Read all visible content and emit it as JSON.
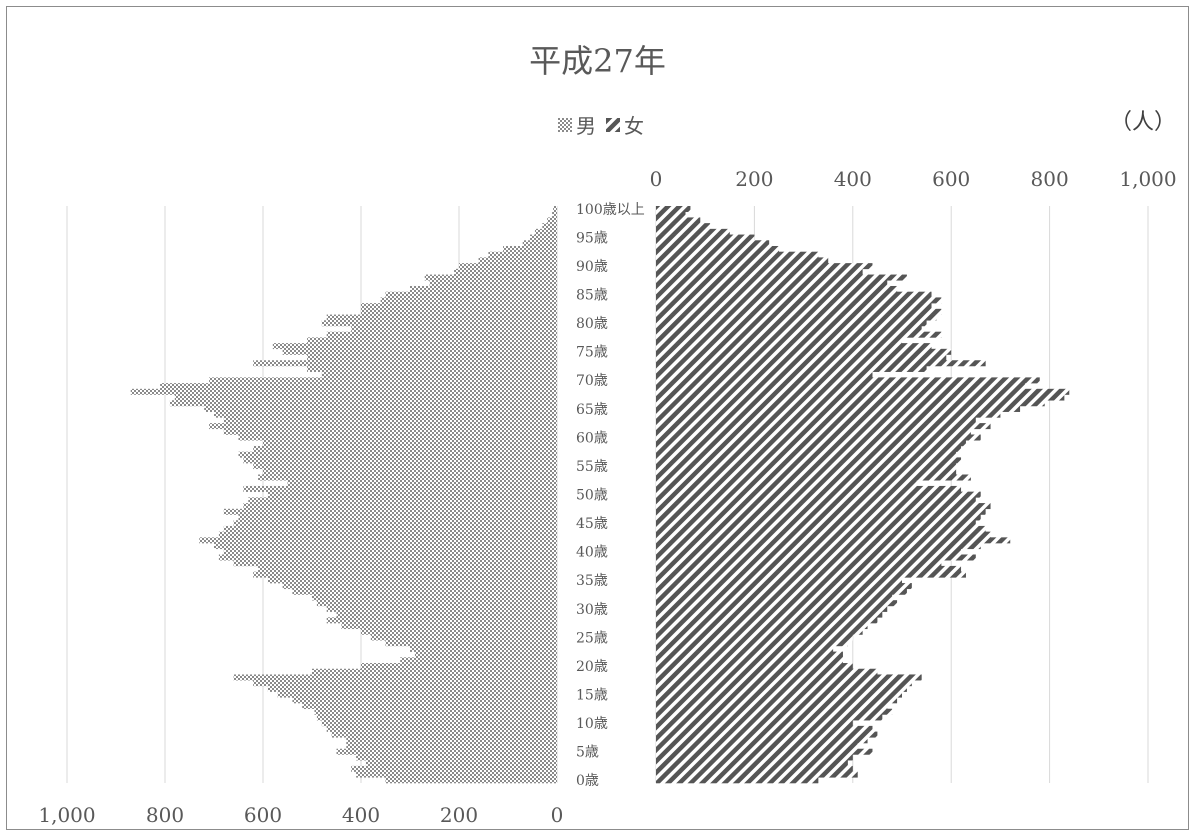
{
  "chart_data": {
    "type": "bar",
    "orientation": "horizontal",
    "subtype": "population-pyramid",
    "title": "平成27年",
    "unit": "（人）",
    "legend": [
      {
        "name": "男",
        "pattern": "checker"
      },
      {
        "name": "女",
        "pattern": "diagonal-stripe"
      }
    ],
    "legend_position": "top-center",
    "grid": true,
    "male_axis": {
      "min": 0,
      "max": 1000,
      "reversed": true,
      "tick_labels": [
        "1,000",
        "800",
        "600",
        "400",
        "200",
        "0"
      ],
      "position": "bottom"
    },
    "female_axis": {
      "min": 0,
      "max": 1000,
      "tick_labels": [
        "0",
        "200",
        "400",
        "600",
        "800",
        "1,000"
      ],
      "position": "top"
    },
    "age_labels": [
      {
        "index": 0,
        "label": "0歳"
      },
      {
        "index": 5,
        "label": "5歳"
      },
      {
        "index": 10,
        "label": "10歳"
      },
      {
        "index": 15,
        "label": "15歳"
      },
      {
        "index": 20,
        "label": "20歳"
      },
      {
        "index": 25,
        "label": "25歳"
      },
      {
        "index": 30,
        "label": "30歳"
      },
      {
        "index": 35,
        "label": "35歳"
      },
      {
        "index": 40,
        "label": "40歳"
      },
      {
        "index": 45,
        "label": "45歳"
      },
      {
        "index": 50,
        "label": "50歳"
      },
      {
        "index": 55,
        "label": "55歳"
      },
      {
        "index": 60,
        "label": "60歳"
      },
      {
        "index": 65,
        "label": "65歳"
      },
      {
        "index": 70,
        "label": "70歳"
      },
      {
        "index": 75,
        "label": "75歳"
      },
      {
        "index": 80,
        "label": "80歳"
      },
      {
        "index": 85,
        "label": "85歳"
      },
      {
        "index": 90,
        "label": "90歳"
      },
      {
        "index": 95,
        "label": "95歳"
      },
      {
        "index": 100,
        "label": "100歳以上"
      }
    ],
    "series": [
      {
        "name": "男",
        "values": [
          350,
          410,
          420,
          390,
          410,
          450,
          430,
          430,
          460,
          470,
          480,
          490,
          495,
          520,
          540,
          570,
          590,
          620,
          660,
          500,
          400,
          320,
          290,
          300,
          350,
          380,
          400,
          440,
          470,
          450,
          470,
          490,
          500,
          540,
          560,
          590,
          620,
          610,
          660,
          690,
          680,
          700,
          730,
          690,
          680,
          660,
          650,
          680,
          640,
          630,
          590,
          640,
          550,
          610,
          600,
          620,
          640,
          650,
          620,
          600,
          650,
          680,
          710,
          680,
          700,
          720,
          790,
          780,
          870,
          810,
          710,
          480,
          510,
          620,
          510,
          560,
          580,
          510,
          470,
          420,
          480,
          470,
          400,
          400,
          360,
          350,
          300,
          260,
          270,
          210,
          200,
          160,
          140,
          110,
          70,
          55,
          45,
          30,
          20,
          10,
          8
        ]
      },
      {
        "name": "女",
        "values": [
          330,
          410,
          400,
          390,
          400,
          440,
          410,
          430,
          450,
          440,
          400,
          460,
          480,
          470,
          490,
          500,
          510,
          520,
          540,
          450,
          400,
          380,
          380,
          360,
          390,
          400,
          420,
          430,
          450,
          460,
          470,
          490,
          480,
          510,
          520,
          500,
          630,
          620,
          580,
          650,
          620,
          660,
          720,
          680,
          670,
          650,
          660,
          670,
          680,
          650,
          660,
          620,
          530,
          640,
          610,
          610,
          620,
          610,
          620,
          630,
          660,
          640,
          680,
          650,
          700,
          740,
          790,
          830,
          840,
          750,
          780,
          440,
          550,
          670,
          590,
          600,
          560,
          500,
          580,
          540,
          550,
          570,
          580,
          560,
          580,
          560,
          490,
          470,
          510,
          420,
          440,
          350,
          330,
          250,
          230,
          200,
          150,
          110,
          90,
          60,
          70
        ]
      }
    ]
  }
}
